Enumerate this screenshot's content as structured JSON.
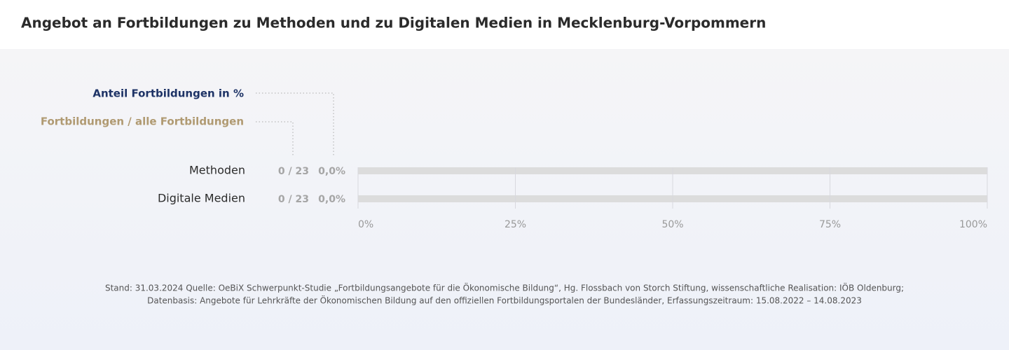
{
  "chart_data": {
    "type": "bar",
    "orientation": "horizontal",
    "title": "Angebot an Fortbildungen zu Methoden und zu Digitalen Medien in Mecklenburg-Vorpommern",
    "column_headers": [
      "Anteil Fortbildungen  in %",
      "Fortbildungen / alle Fortbildungen"
    ],
    "categories": [
      "Methoden",
      "Digitale Medien"
    ],
    "values": [
      0,
      0
    ],
    "value_labels": [
      "0,0%",
      "0,0%"
    ],
    "fraction_labels": [
      "0 / 23",
      "0 / 23"
    ],
    "color": "#1e3366",
    "xlim": [
      0,
      100
    ],
    "xticks": [
      {
        "value": 0,
        "label": "0%"
      },
      {
        "value": 25,
        "label": "25%"
      },
      {
        "value": 50,
        "label": "50%"
      },
      {
        "value": 75,
        "label": "75%"
      },
      {
        "value": 100,
        "label": "100%"
      }
    ],
    "grid": true,
    "notes": [
      "Stand: 31.03.2024 Quelle: OeBiX Schwerpunkt-Studie „Fortbildungsangebote für die Ökonomische Bildung“, Hg. Flossbach von Storch Stiftung, wissenschaftliche Realisation: IÖB Oldenburg;",
      "Datenbasis: Angebote für Lehrkräfte der Ökonomischen Bildung auf den offiziellen Fortbildungsportalen der Bundesländer, Erfassungszeitraum: 15.08.2022 – 14.08.2023"
    ]
  }
}
